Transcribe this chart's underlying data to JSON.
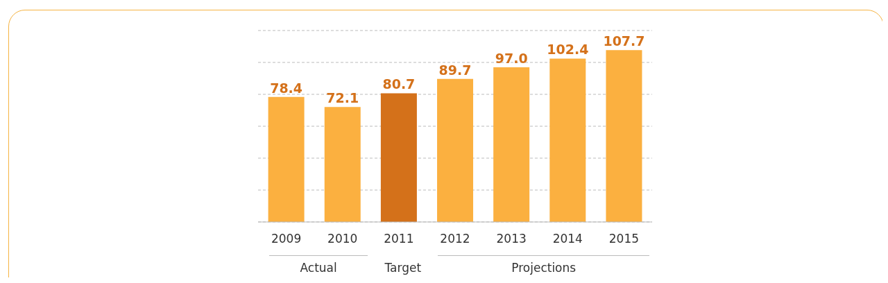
{
  "chart_data": {
    "type": "bar",
    "categories": [
      "2009",
      "2010",
      "2011",
      "2012",
      "2013",
      "2014",
      "2015"
    ],
    "values": [
      78.4,
      72.1,
      80.7,
      89.7,
      97.0,
      102.4,
      107.7
    ],
    "value_labels": [
      "78.4",
      "72.1",
      "80.7",
      "89.7",
      "97.0",
      "102.4",
      "107.7"
    ],
    "colors": [
      "#fbb040",
      "#fbb040",
      "#d4711a",
      "#fbb040",
      "#fbb040",
      "#fbb040",
      "#fbb040"
    ],
    "grid": "y",
    "annotations": [
      "Actual",
      "Target",
      "Projections"
    ]
  }
}
